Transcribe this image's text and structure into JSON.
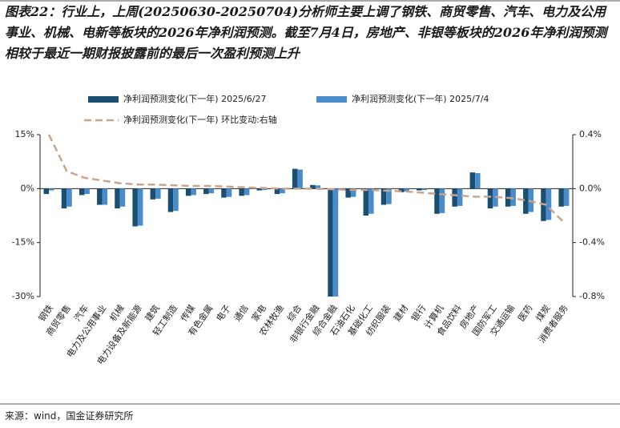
{
  "chart_data": {
    "type": "bar",
    "title": "图表22：行业上，上周(20250630-20250704)分析师主要上调了钢铁、商贸零售、汽车、电力及公用事业、机械、电新等板块的2026年净利润预测。截至7月4日，房地产、非银等板块的2026年净利润预测相较于最近一期财报披露前的最后一次盈利预测上升",
    "source": "来源：wind，国金证券研究所",
    "categories": [
      "钢铁",
      "商贸零售",
      "汽车",
      "电力及公用事业",
      "机械",
      "电力设备及新能源",
      "建筑",
      "轻工制造",
      "传媒",
      "有色金属",
      "电子",
      "通信",
      "家电",
      "农林牧渔",
      "综合",
      "非银行金融",
      "综合金融",
      "石油石化",
      "基础化工",
      "纺织服装",
      "建材",
      "银行",
      "计算机",
      "食品饮料",
      "房地产",
      "国防军工",
      "交通运输",
      "医药",
      "煤炭",
      "消费者服务"
    ],
    "series": [
      {
        "name": "净利润预测变化(下一年) 2025/6/27",
        "color": "#1b4f72",
        "values": [
          -1.5,
          -5.5,
          -1.8,
          -4.5,
          -5.5,
          -10.5,
          -3.0,
          -6.5,
          -2.0,
          -1.5,
          -2.5,
          -2.0,
          -0.5,
          -1.5,
          5.5,
          1.0,
          -30,
          -2.5,
          -7.5,
          -4.5,
          -1.0,
          -0.5,
          -7.0,
          -5.0,
          4.5,
          -5.5,
          -5.0,
          -7.0,
          -9.0,
          -5.0
        ]
      },
      {
        "name": "净利润预测变化(下一年) 2025/7/4",
        "color": "#4a8bc9",
        "values": [
          -0.5,
          -5.0,
          -1.5,
          -4.5,
          -5.0,
          -10.3,
          -2.8,
          -6.2,
          -1.8,
          -1.3,
          -2.3,
          -1.8,
          -0.4,
          -1.3,
          5.3,
          0.9,
          -30,
          -2.3,
          -7.0,
          -4.3,
          -0.8,
          -0.4,
          -6.8,
          -4.8,
          4.3,
          -5.0,
          -4.8,
          -6.5,
          -8.7,
          -4.8
        ]
      },
      {
        "name": "净利润预测变化(下一年) 环比变动:右轴",
        "color": "#c9a58e",
        "type": "line",
        "axis": "y2",
        "line_style": "dashed",
        "values": [
          0.4,
          0.13,
          0.08,
          0.06,
          0.04,
          0.03,
          0.03,
          0.025,
          0.02,
          0.02,
          0.015,
          0.01,
          0.005,
          0,
          0,
          0,
          -0.005,
          -0.01,
          -0.01,
          -0.015,
          -0.02,
          -0.03,
          -0.04,
          -0.05,
          -0.06,
          -0.06,
          -0.07,
          -0.09,
          -0.12,
          -0.25
        ]
      }
    ],
    "ylim": [
      -30,
      15
    ],
    "yticks": [
      {
        "value": 15,
        "label": "15%"
      },
      {
        "value": 0,
        "label": "0%"
      },
      {
        "value": -15,
        "label": "-15%"
      },
      {
        "value": -30,
        "label": "-30%"
      }
    ],
    "y2lim": [
      -0.8,
      0.4
    ],
    "y2ticks": [
      {
        "value": 0.4,
        "label": "0.4%"
      },
      {
        "value": 0,
        "label": "0.0%"
      },
      {
        "value": -0.4,
        "label": "-0.4%"
      },
      {
        "value": -0.8,
        "label": "-0.8%"
      }
    ]
  }
}
